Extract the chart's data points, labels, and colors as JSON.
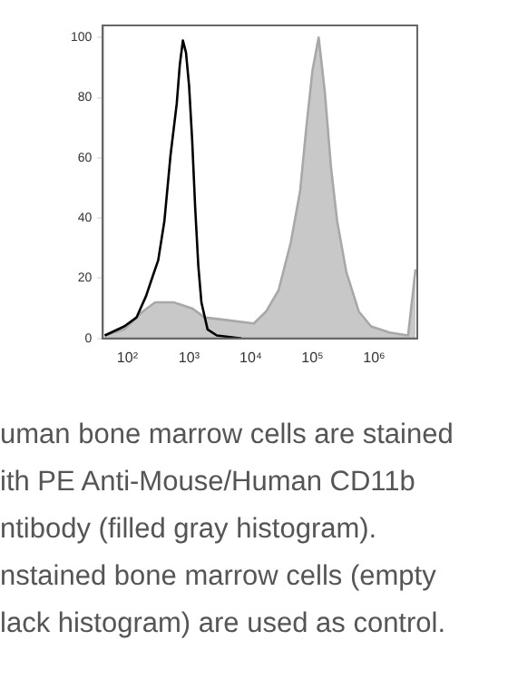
{
  "chart_data": {
    "type": "line",
    "series": [
      {
        "type": "area",
        "color": "#c8c8c8",
        "x": [
          43,
          89,
          178,
          282,
          562,
          1122,
          1778,
          4467,
          11220,
          17780,
          28180,
          44670,
          63100,
          79430,
          100000,
          125900,
          158500,
          199500,
          251200,
          354800,
          562300,
          891300,
          1778000,
          3548000,
          4677000
        ],
        "values": [
          1,
          3,
          9,
          12,
          12,
          10,
          7,
          6,
          5,
          9,
          16,
          32,
          49,
          70,
          89,
          100,
          82,
          57,
          39,
          22,
          9,
          4,
          2,
          1,
          23
        ]
      },
      {
        "type": "line",
        "color": "#000000",
        "x": [
          43,
          89,
          141,
          200,
          251,
          316,
          398,
          501,
          631,
          708,
          794,
          891,
          1000,
          1122,
          1259,
          1413,
          1585,
          1995,
          2818,
          7079
        ],
        "values": [
          1,
          4,
          7,
          14,
          20,
          26,
          39,
          61,
          78,
          91,
          99,
          95,
          84,
          66,
          43,
          24,
          12,
          3,
          1,
          0
        ]
      }
    ],
    "log": "x",
    "xlim": [
      40,
      5000000
    ],
    "xticks": [
      {
        "value": 100,
        "label": "10²"
      },
      {
        "value": 1000,
        "label": "10³"
      },
      {
        "value": 10000,
        "label": "10⁴"
      },
      {
        "value": 100000,
        "label": "10⁵"
      },
      {
        "value": 1000000,
        "label": "10⁶"
      }
    ],
    "ylim": [
      0,
      104
    ],
    "yticks": [
      0,
      20,
      40,
      60,
      80,
      100
    ],
    "grid": false,
    "legend": false,
    "marker": "none",
    "annotations": [
      "uman bone marrow cells are stained",
      "ith PE Anti-Mouse/Human CD11b",
      "ntibody (filled gray histogram).",
      "nstained bone marrow cells (empty",
      "lack histogram) are used as control."
    ]
  }
}
